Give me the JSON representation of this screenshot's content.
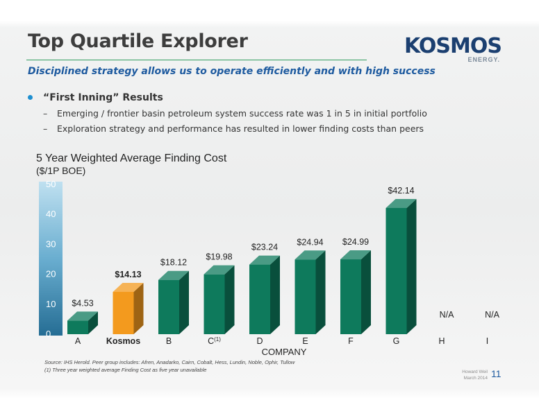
{
  "header": {
    "title": "Top Quartile Explorer",
    "subtitle": "Disciplined strategy allows us to operate efficiently and with high success"
  },
  "logo": {
    "word": "KOSMOS",
    "tagline": "ENERGY."
  },
  "bullets": {
    "main": "“First Inning” Results",
    "sub": [
      "Emerging / frontier basin petroleum system success rate was 1 in 5 in initial portfolio",
      "Exploration strategy and performance has resulted in lower finding costs than peers"
    ]
  },
  "colors": {
    "bar_peer": "#0e7a5c",
    "bar_kosmos": "#f39a1e",
    "axis_bar": "#2f7aa2",
    "title_text": "#3d3d3d",
    "subtitle_text": "#1d5a9f"
  },
  "chart_data": {
    "type": "bar",
    "title": "5 Year Weighted Average Finding Cost",
    "unit_label": "($/1P BOE)",
    "xlabel": "COMPANY",
    "ylim": [
      0,
      50
    ],
    "y_ticks": [
      "0",
      "10",
      "20",
      "30",
      "40",
      "50"
    ],
    "categories": [
      "A",
      "Kosmos",
      "B",
      "C",
      "D",
      "E",
      "F",
      "G",
      "H",
      "I"
    ],
    "category_superscripts": [
      "",
      "",
      "",
      "(1)",
      "",
      "",
      "",
      "",
      "",
      ""
    ],
    "values": [
      4.53,
      14.13,
      18.12,
      19.98,
      23.24,
      24.94,
      24.99,
      42.14,
      null,
      null
    ],
    "labels": [
      "$4.53",
      "$14.13",
      "$18.12",
      "$19.98",
      "$23.24",
      "$24.94",
      "$24.99",
      "$42.14",
      "N/A",
      "N/A"
    ],
    "highlight": "Kosmos"
  },
  "footer": {
    "source_lines": [
      "Source: IHS Herold.  Peer group includes: Afren, Anadarko, Cairn, Cobalt, Hess, Lundin, Noble, Ophir, Tullow",
      "(1) Three year weighted average Finding Cost as five year unavailable"
    ],
    "date_lines": [
      "Howard Weil",
      "March 2014"
    ],
    "page": "11"
  }
}
